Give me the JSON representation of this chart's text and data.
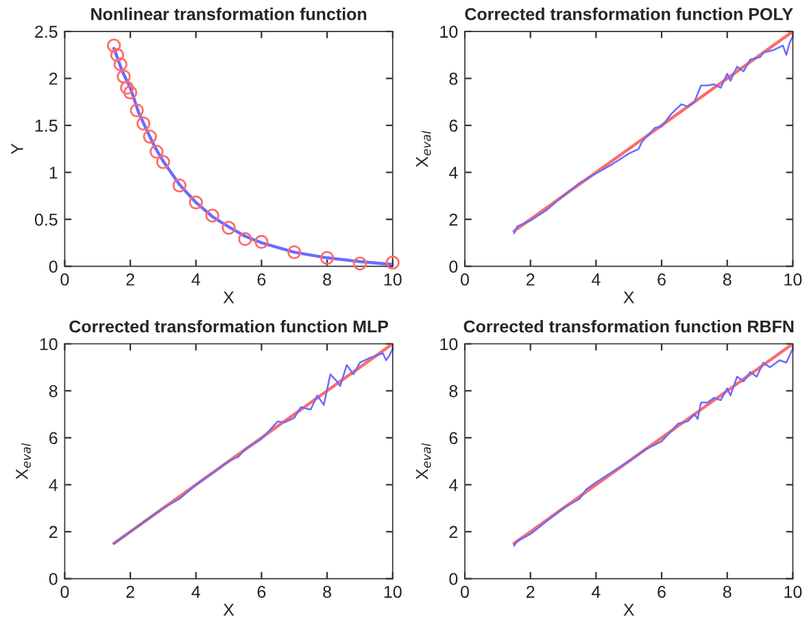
{
  "chart_data": [
    {
      "type": "line",
      "title": "Nonlinear transformation function",
      "xlabel": "X",
      "ylabel": "Y",
      "xlim": [
        0,
        10
      ],
      "ylim": [
        0,
        2.5
      ],
      "xticks": [
        0,
        2,
        4,
        6,
        8,
        10
      ],
      "yticks": [
        0,
        0.5,
        1,
        1.5,
        2,
        2.5
      ],
      "grid": false,
      "legend": false,
      "series": [
        {
          "color": "#6b6bff",
          "x": [
            1.5,
            1.75,
            2,
            2.25,
            2.5,
            2.75,
            3,
            3.5,
            4,
            4.5,
            5,
            5.5,
            6,
            7,
            8,
            9,
            10
          ],
          "values": [
            2.32,
            2.08,
            1.9,
            1.64,
            1.45,
            1.27,
            1.12,
            0.87,
            0.68,
            0.53,
            0.42,
            0.32,
            0.25,
            0.15,
            0.09,
            0.05,
            0.02
          ]
        },
        {
          "type": "scatter",
          "marker": "circle",
          "color": "#ff6b6b",
          "x": [
            1.5,
            1.6,
            1.7,
            1.8,
            1.9,
            2.0,
            2.2,
            2.4,
            2.6,
            2.8,
            3.0,
            3.5,
            4,
            4.5,
            5,
            5.5,
            6,
            7,
            8,
            9,
            10
          ],
          "values": [
            2.35,
            2.25,
            2.15,
            2.02,
            1.9,
            1.85,
            1.66,
            1.52,
            1.38,
            1.22,
            1.11,
            0.86,
            0.68,
            0.54,
            0.41,
            0.29,
            0.26,
            0.15,
            0.09,
            0.03,
            0.04
          ]
        }
      ]
    },
    {
      "type": "line",
      "title": "Corrected transformation function POLY",
      "xlabel": "X",
      "ylabel": "X$_{eval}$",
      "xlim": [
        0,
        10
      ],
      "ylim": [
        0,
        10
      ],
      "xticks": [
        0,
        2,
        4,
        6,
        8,
        10
      ],
      "yticks": [
        0,
        2,
        4,
        6,
        8,
        10
      ],
      "grid": false,
      "legend": false,
      "series": [
        {
          "type": "line",
          "color": "#ff6b6b",
          "x": [
            1.5,
            10
          ],
          "values": [
            1.5,
            10
          ]
        },
        {
          "color": "#6b6bff",
          "x": [
            1.5,
            1.6,
            2,
            2.5,
            3,
            3.5,
            4,
            4.5,
            5,
            5.3,
            5.4,
            5.8,
            6,
            6.3,
            6.6,
            6.8,
            7,
            7.2,
            7.4,
            7.6,
            7.8,
            8.0,
            8.1,
            8.3,
            8.5,
            8.7,
            9,
            9.1,
            9.4,
            9.7,
            9.8,
            9.9,
            10
          ],
          "values": [
            1.4,
            1.7,
            1.95,
            2.4,
            3.0,
            3.55,
            3.95,
            4.35,
            4.8,
            5.0,
            5.3,
            5.9,
            5.95,
            6.5,
            6.9,
            6.8,
            7.0,
            7.7,
            7.7,
            7.75,
            7.6,
            8.2,
            7.9,
            8.5,
            8.3,
            8.8,
            8.9,
            9.1,
            9.2,
            9.4,
            9.0,
            9.5,
            9.8
          ]
        }
      ]
    },
    {
      "type": "line",
      "title": "Corrected transformation function MLP",
      "xlabel": "X",
      "ylabel": "X$_{eval}$",
      "xlim": [
        0,
        10
      ],
      "ylim": [
        0,
        10
      ],
      "xticks": [
        0,
        2,
        4,
        6,
        8,
        10
      ],
      "yticks": [
        0,
        2,
        4,
        6,
        8,
        10
      ],
      "grid": false,
      "legend": false,
      "series": [
        {
          "type": "line",
          "color": "#ff6b6b",
          "x": [
            1.5,
            10
          ],
          "values": [
            1.5,
            10
          ]
        },
        {
          "color": "#6b6bff",
          "x": [
            1.5,
            2,
            3,
            3.5,
            4,
            5,
            5.3,
            5.5,
            6,
            6.5,
            6.7,
            7,
            7.2,
            7.5,
            7.7,
            7.9,
            8.1,
            8.3,
            8.4,
            8.6,
            8.8,
            9.0,
            9.3,
            9.7,
            9.8,
            9.9,
            10
          ],
          "values": [
            1.5,
            2.0,
            3.0,
            3.4,
            4.0,
            5.0,
            5.2,
            5.5,
            5.95,
            6.7,
            6.65,
            6.85,
            7.3,
            7.2,
            7.8,
            7.4,
            8.7,
            8.4,
            8.2,
            9.1,
            8.7,
            9.2,
            9.4,
            9.6,
            9.3,
            9.5,
            9.8
          ]
        }
      ]
    },
    {
      "type": "line",
      "title": "Corrected transformation function RBFN",
      "xlabel": "X",
      "ylabel": "X$_{eval}$",
      "xlim": [
        0,
        10
      ],
      "ylim": [
        0,
        10
      ],
      "xticks": [
        0,
        2,
        4,
        6,
        8,
        10
      ],
      "yticks": [
        0,
        2,
        4,
        6,
        8,
        10
      ],
      "grid": false,
      "legend": false,
      "series": [
        {
          "type": "line",
          "color": "#ff6b6b",
          "x": [
            1.5,
            10
          ],
          "values": [
            1.5,
            10
          ]
        },
        {
          "color": "#6b6bff",
          "x": [
            1.5,
            1.6,
            2,
            3,
            3.5,
            3.7,
            4,
            5,
            5.5,
            6,
            6.5,
            6.8,
            7,
            7.1,
            7.2,
            7.4,
            7.6,
            7.8,
            8,
            8.1,
            8.3,
            8.5,
            8.7,
            8.9,
            9.1,
            9.3,
            9.6,
            9.8,
            9.9,
            10
          ],
          "values": [
            1.4,
            1.6,
            1.9,
            3.0,
            3.4,
            3.8,
            4.1,
            5.0,
            5.5,
            5.85,
            6.6,
            6.7,
            7.0,
            6.8,
            7.5,
            7.5,
            7.7,
            7.6,
            8.1,
            7.8,
            8.6,
            8.4,
            8.8,
            8.6,
            9.2,
            9.0,
            9.3,
            9.2,
            9.5,
            9.8
          ]
        }
      ]
    }
  ]
}
